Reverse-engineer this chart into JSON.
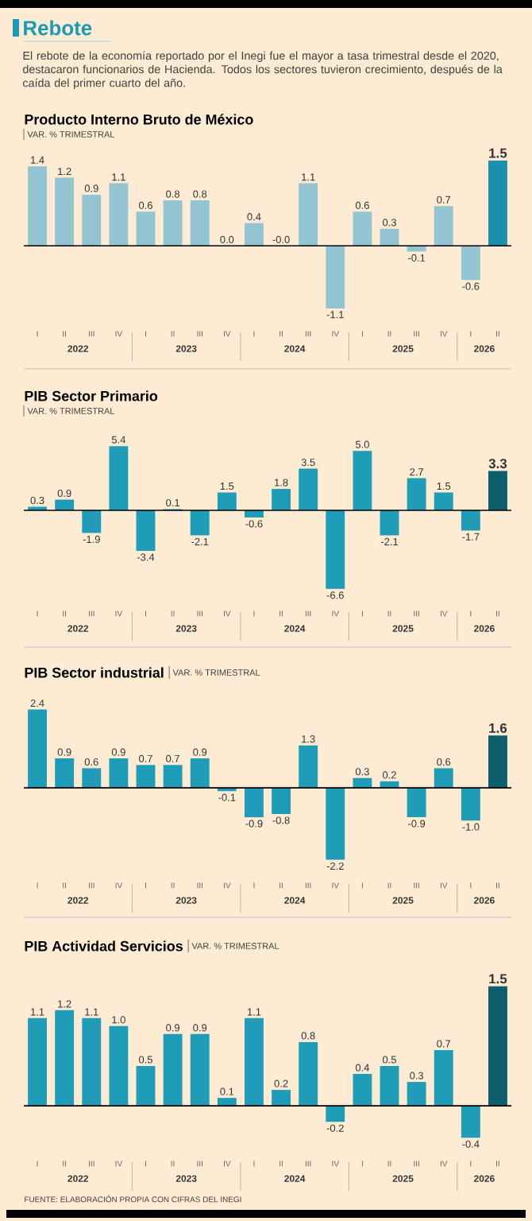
{
  "chart_data": [
    {
      "type": "other",
      "title": "Rebote",
      "subtitle": "El rebote de la economía reportado por el Inegi fue el mayor a tasa trimestral desde el 2020, destacaron funcionarios de Hacienda. Todos los sectores tuvieron crecimiento, después de la caída del primer cuarto del año."
    },
    {
      "type": "bar",
      "title": "Producto Interno Bruto de México",
      "ylabel": "VAR. % TRIMESTRAL",
      "categories": [
        "I",
        "II",
        "III",
        "IV",
        "I",
        "II",
        "III",
        "IV",
        "I",
        "II",
        "III",
        "IV",
        "I",
        "II",
        "III",
        "IV",
        "I",
        "II"
      ],
      "values": [
        1.4,
        1.2,
        0.9,
        1.1,
        0.6,
        0.8,
        0.8,
        0.0,
        0.4,
        -0.0,
        1.1,
        -1.1,
        0.6,
        0.3,
        -0.1,
        0.7,
        -0.6,
        1.5
      ],
      "value_labels": [
        "1.4",
        "1.2",
        "0.9",
        "1.1",
        "0.6",
        "0.8",
        "0.8",
        "0.0",
        "0.4",
        "-0.0",
        "1.1",
        "-1.1",
        "0.6",
        "0.3",
        "-0.1",
        "0.7",
        "-0.6",
        "1.5"
      ],
      "colors": [
        "#93c4d2",
        "#93c4d2",
        "#93c4d2",
        "#93c4d2",
        "#93c4d2",
        "#93c4d2",
        "#93c4d2",
        "#93c4d2",
        "#93c4d2",
        "#93c4d2",
        "#93c4d2",
        "#93c4d2",
        "#93c4d2",
        "#93c4d2",
        "#93c4d2",
        "#93c4d2",
        "#93c4d2",
        "#1b8fae"
      ],
      "annotations": [
        "2022",
        "2023",
        "2024",
        "2025",
        "2026"
      ]
    },
    {
      "type": "bar",
      "title": "PIB Sector Primario",
      "ylabel": "VAR. % TRIMESTRAL",
      "categories": [
        "I",
        "II",
        "III",
        "IV",
        "I",
        "II",
        "III",
        "IV",
        "I",
        "II",
        "III",
        "IV",
        "I",
        "II",
        "III",
        "IV",
        "I",
        "II"
      ],
      "values": [
        0.3,
        0.9,
        -1.9,
        5.4,
        -3.4,
        0.1,
        -2.1,
        1.5,
        -0.6,
        1.8,
        3.5,
        -6.6,
        5.0,
        -2.1,
        2.7,
        1.5,
        -1.7,
        3.3
      ],
      "value_labels": [
        "0.3",
        "0.9",
        "-1.9",
        "5.4",
        "-3.4",
        "0.1",
        "-2.1",
        "1.5",
        "-0.6",
        "1.8",
        "3.5",
        "-6.6",
        "5.0",
        "-2.1",
        "2.7",
        "1.5",
        "-1.7",
        "3.3"
      ],
      "colors": [
        "#1e9cb8",
        "#1e9cb8",
        "#1e9cb8",
        "#1e9cb8",
        "#1e9cb8",
        "#1e9cb8",
        "#1e9cb8",
        "#1e9cb8",
        "#1e9cb8",
        "#1e9cb8",
        "#1e9cb8",
        "#1e9cb8",
        "#1e9cb8",
        "#1e9cb8",
        "#1e9cb8",
        "#1e9cb8",
        "#1e9cb8",
        "#0d5f6d"
      ],
      "annotations": [
        "2022",
        "2023",
        "2024",
        "2025",
        "2026"
      ]
    },
    {
      "type": "bar",
      "title": "PIB Sector industrial",
      "ylabel": "VAR. % TRIMESTRAL",
      "categories": [
        "I",
        "II",
        "III",
        "IV",
        "I",
        "II",
        "III",
        "IV",
        "I",
        "II",
        "III",
        "IV",
        "I",
        "II",
        "III",
        "IV",
        "I",
        "II"
      ],
      "values": [
        2.4,
        0.9,
        0.6,
        0.9,
        0.7,
        0.7,
        0.9,
        -0.1,
        -0.9,
        -0.8,
        1.3,
        -2.2,
        0.3,
        0.2,
        -0.9,
        0.6,
        -1.0,
        1.6
      ],
      "value_labels": [
        "2.4",
        "0.9",
        "0.6",
        "0.9",
        "0.7",
        "0.7",
        "0.9",
        "-0.1",
        "-0.9",
        "-0.8",
        "1.3",
        "-2.2",
        "0.3",
        "0.2",
        "-0.9",
        "0.6",
        "-1.0",
        "1.6"
      ],
      "colors": [
        "#1e9cb8",
        "#1e9cb8",
        "#1e9cb8",
        "#1e9cb8",
        "#1e9cb8",
        "#1e9cb8",
        "#1e9cb8",
        "#1e9cb8",
        "#1e9cb8",
        "#1e9cb8",
        "#1e9cb8",
        "#1e9cb8",
        "#1e9cb8",
        "#1e9cb8",
        "#1e9cb8",
        "#1e9cb8",
        "#1e9cb8",
        "#0d5f6d"
      ],
      "annotations": [
        "2022",
        "2023",
        "2024",
        "2025",
        "2026"
      ]
    },
    {
      "type": "bar",
      "title": "PIB Actividad Servicios",
      "ylabel": "VAR. % TRIMESTRAL",
      "categories": [
        "I",
        "II",
        "III",
        "IV",
        "I",
        "II",
        "III",
        "IV",
        "I",
        "II",
        "III",
        "IV",
        "I",
        "II",
        "III",
        "IV",
        "I",
        "II"
      ],
      "values": [
        1.1,
        1.2,
        1.1,
        1.0,
        0.5,
        0.9,
        0.9,
        0.1,
        1.1,
        0.2,
        0.8,
        -0.2,
        0.4,
        0.5,
        0.3,
        0.7,
        -0.4,
        1.5
      ],
      "value_labels": [
        "1.1",
        "1.2",
        "1.1",
        "1.0",
        "0.5",
        "0.9",
        "0.9",
        "0.1",
        "1.1",
        "0.2",
        "0.8",
        "-0.2",
        "0.4",
        "0.5",
        "0.3",
        "0.7",
        "-0.4",
        "1.5"
      ],
      "colors": [
        "#1e9cb8",
        "#1e9cb8",
        "#1e9cb8",
        "#1e9cb8",
        "#1e9cb8",
        "#1e9cb8",
        "#1e9cb8",
        "#1e9cb8",
        "#1e9cb8",
        "#1e9cb8",
        "#1e9cb8",
        "#1e9cb8",
        "#1e9cb8",
        "#1e9cb8",
        "#1e9cb8",
        "#1e9cb8",
        "#1e9cb8",
        "#0d5f6d"
      ],
      "annotations": [
        "2022",
        "2023",
        "2024",
        "2025",
        "2026",
        "FUENTE: ELABORACIÓN PROPIA CON CIFRAS DEL INEGI"
      ]
    }
  ]
}
